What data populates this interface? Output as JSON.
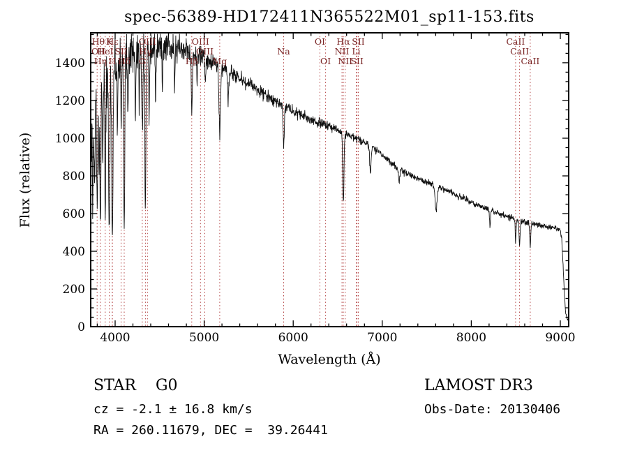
{
  "figure": {
    "title": "spec-56389-HD172411N365522M01_sp11-153.fits"
  },
  "annotations": {
    "object_class": "STAR    G0",
    "survey": "LAMOST DR3",
    "cz": "cz = -2.1 ± 16.8 km/s",
    "obs_date": "Obs-Date: 20130406",
    "radec": "RA = 260.11679, DEC =  39.26441"
  },
  "chart_data": {
    "type": "line",
    "title": "spec-56389-HD172411N365522M01_sp11-153.fits",
    "xlabel": "Wavelength (Å)",
    "ylabel": "Flux (relative)",
    "xlim": [
      3726,
      9094
    ],
    "ylim": [
      0,
      1559
    ],
    "x_ticks": [
      4000,
      5000,
      6000,
      7000,
      8000,
      9000
    ],
    "y_ticks": [
      0,
      200,
      400,
      600,
      800,
      1000,
      1200,
      1400
    ],
    "x_minor_step": 200,
    "y_minor_step": 50,
    "grid": false,
    "line_color": "#111111",
    "marker_color": "#b24040",
    "marker_label_color": "#7a2525",
    "spectral_lines": [
      {
        "label": "Hθ",
        "wavelength": 3798,
        "row": 1
      },
      {
        "label": "K",
        "wavelength": 3934,
        "row": 1
      },
      {
        "label": "Hε",
        "wavelength": 3970,
        "row": 1
      },
      {
        "label": "OIII",
        "wavelength": 4363,
        "row": 1
      },
      {
        "label": "OIII",
        "wavelength": 4959,
        "row": 1
      },
      {
        "label": "OI",
        "wavelength": 6300,
        "row": 1
      },
      {
        "label": "Hα",
        "wavelength": 6563,
        "row": 1
      },
      {
        "label": "SII",
        "wavelength": 6731,
        "row": 1
      },
      {
        "label": "CaII",
        "wavelength": 8498,
        "row": 1
      },
      {
        "label": "OII",
        "wavelength": 3727,
        "row": 2
      },
      {
        "label": "HeI",
        "wavelength": 3889,
        "row": 2
      },
      {
        "label": "SII",
        "wavelength": 4068,
        "row": 2
      },
      {
        "label": "Hγ",
        "wavelength": 4340,
        "row": 2
      },
      {
        "label": "OIII",
        "wavelength": 5007,
        "row": 2
      },
      {
        "label": "Na",
        "wavelength": 5893,
        "row": 2
      },
      {
        "label": "NII",
        "wavelength": 6548,
        "row": 2
      },
      {
        "label": "Li",
        "wavelength": 6708,
        "row": 2
      },
      {
        "label": "CaII",
        "wavelength": 8542,
        "row": 2
      },
      {
        "label": "Hη",
        "wavelength": 3835,
        "row": 3
      },
      {
        "label": "H",
        "wavelength": 3968,
        "row": 3
      },
      {
        "label": "Hδ",
        "wavelength": 4102,
        "row": 3
      },
      {
        "label": "G",
        "wavelength": 4305,
        "row": 3
      },
      {
        "label": "Hβ",
        "wavelength": 4861,
        "row": 3
      },
      {
        "label": "Mg",
        "wavelength": 5175,
        "row": 3
      },
      {
        "label": "OI",
        "wavelength": 6364,
        "row": 3
      },
      {
        "label": "NII",
        "wavelength": 6584,
        "row": 3
      },
      {
        "label": "SII",
        "wavelength": 6717,
        "row": 3
      },
      {
        "label": "CaII",
        "wavelength": 8662,
        "row": 3
      }
    ],
    "spectrum": {
      "step": 3,
      "noise_seed": 20130406,
      "continuum": [
        [
          3726,
          1020
        ],
        [
          3760,
          1120
        ],
        [
          3800,
          1200
        ],
        [
          3850,
          1270
        ],
        [
          3900,
          1310
        ],
        [
          3950,
          1330
        ],
        [
          4000,
          1360
        ],
        [
          4060,
          1400
        ],
        [
          4120,
          1430
        ],
        [
          4200,
          1455
        ],
        [
          4300,
          1465
        ],
        [
          4400,
          1475
        ],
        [
          4500,
          1485
        ],
        [
          4600,
          1495
        ],
        [
          4700,
          1490
        ],
        [
          4800,
          1470
        ],
        [
          4900,
          1450
        ],
        [
          5000,
          1425
        ],
        [
          5100,
          1400
        ],
        [
          5200,
          1375
        ],
        [
          5300,
          1348
        ],
        [
          5400,
          1320
        ],
        [
          5500,
          1290
        ],
        [
          5600,
          1258
        ],
        [
          5700,
          1225
        ],
        [
          5800,
          1195
        ],
        [
          5900,
          1168
        ],
        [
          6000,
          1142
        ],
        [
          6100,
          1120
        ],
        [
          6200,
          1100
        ],
        [
          6300,
          1082
        ],
        [
          6400,
          1062
        ],
        [
          6500,
          1042
        ],
        [
          6600,
          1022
        ],
        [
          6700,
          1002
        ],
        [
          6800,
          978
        ],
        [
          6900,
          948
        ],
        [
          7000,
          908
        ],
        [
          7100,
          868
        ],
        [
          7200,
          833
        ],
        [
          7300,
          806
        ],
        [
          7400,
          786
        ],
        [
          7500,
          766
        ],
        [
          7600,
          748
        ],
        [
          7700,
          728
        ],
        [
          7800,
          706
        ],
        [
          7900,
          682
        ],
        [
          8000,
          660
        ],
        [
          8100,
          640
        ],
        [
          8200,
          621
        ],
        [
          8300,
          602
        ],
        [
          8400,
          586
        ],
        [
          8500,
          571
        ],
        [
          8600,
          557
        ],
        [
          8700,
          546
        ],
        [
          8800,
          536
        ],
        [
          8900,
          527
        ],
        [
          8960,
          520
        ],
        [
          9000,
          512
        ],
        [
          9015,
          470
        ],
        [
          9030,
          340
        ],
        [
          9045,
          180
        ],
        [
          9060,
          70
        ],
        [
          9085,
          35
        ]
      ],
      "absorption_lines": [
        [
          3727,
          350,
          5
        ],
        [
          3750,
          420,
          5
        ],
        [
          3770,
          380,
          4
        ],
        [
          3798,
          620,
          5
        ],
        [
          3820,
          350,
          4
        ],
        [
          3835,
          700,
          5
        ],
        [
          3860,
          400,
          4
        ],
        [
          3889,
          760,
          5
        ],
        [
          3934,
          920,
          6
        ],
        [
          3969,
          950,
          7
        ],
        [
          4026,
          300,
          4
        ],
        [
          4068,
          350,
          4
        ],
        [
          4102,
          900,
          6
        ],
        [
          4144,
          300,
          4
        ],
        [
          4227,
          380,
          4
        ],
        [
          4271,
          300,
          4
        ],
        [
          4305,
          400,
          7
        ],
        [
          4340,
          850,
          6
        ],
        [
          4383,
          340,
          4
        ],
        [
          4455,
          250,
          4
        ],
        [
          4531,
          220,
          4
        ],
        [
          4668,
          220,
          4
        ],
        [
          4861,
          320,
          6
        ],
        [
          4920,
          160,
          4
        ],
        [
          5015,
          150,
          4
        ],
        [
          5175,
          330,
          9
        ],
        [
          5270,
          170,
          6
        ],
        [
          5893,
          195,
          7
        ],
        [
          6563,
          365,
          7
        ],
        [
          6867,
          140,
          8
        ],
        [
          7190,
          60,
          8
        ],
        [
          7605,
          130,
          11
        ],
        [
          8210,
          90,
          5
        ],
        [
          8498,
          115,
          5
        ],
        [
          8542,
          135,
          6
        ],
        [
          8662,
          125,
          6
        ]
      ],
      "noise_amplitude": [
        [
          3726,
          95
        ],
        [
          3850,
          85
        ],
        [
          4000,
          75
        ],
        [
          4200,
          62
        ],
        [
          4450,
          48
        ],
        [
          4700,
          36
        ],
        [
          5000,
          27
        ],
        [
          5300,
          21
        ],
        [
          5700,
          17
        ],
        [
          6200,
          13
        ],
        [
          6800,
          11
        ],
        [
          7400,
          9
        ],
        [
          8200,
          8
        ],
        [
          8800,
          8
        ],
        [
          9000,
          6
        ],
        [
          9085,
          4
        ]
      ]
    }
  }
}
